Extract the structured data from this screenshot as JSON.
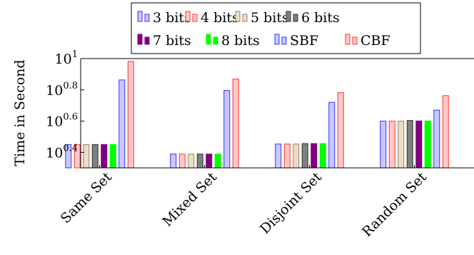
{
  "chart_data": {
    "type": "bar",
    "scale": "log",
    "ylabel": "Time in Second",
    "ylim": [
      2.0,
      10.0
    ],
    "yticks": [
      {
        "value": 2.512,
        "base": "10",
        "exp": "0.4"
      },
      {
        "value": 3.981,
        "base": "10",
        "exp": "0.6"
      },
      {
        "value": 6.31,
        "base": "10",
        "exp": "0.8"
      },
      {
        "value": 10.0,
        "base": "10",
        "exp": "1"
      }
    ],
    "categories": [
      "Same Set",
      "Mixed Set",
      "Disjoint Set",
      "Random Set"
    ],
    "series": [
      {
        "name": "3 bits",
        "fill": "#c8c8ff",
        "stroke": "#3333ff",
        "values": [
          2.82,
          2.45,
          2.84,
          3.98
        ]
      },
      {
        "name": "4 bits",
        "fill": "#ffc8c8",
        "stroke": "#ff3333",
        "values": [
          2.82,
          2.45,
          2.84,
          3.98
        ]
      },
      {
        "name": "5 bits",
        "fill": "#eadcc9",
        "stroke": "#a08060",
        "values": [
          2.82,
          2.45,
          2.84,
          3.98
        ]
      },
      {
        "name": "6 bits",
        "fill": "#808080",
        "stroke": "#333333",
        "values": [
          2.82,
          2.45,
          2.86,
          4.02
        ]
      },
      {
        "name": "7 bits",
        "fill": "#800080",
        "stroke": "#800080",
        "values": [
          2.82,
          2.45,
          2.86,
          3.99
        ]
      },
      {
        "name": "8 bits",
        "fill": "#00ff00",
        "stroke": "#00ff00",
        "values": [
          2.82,
          2.45,
          2.86,
          3.99
        ]
      },
      {
        "name": "SBF",
        "fill": "#c8c8ff",
        "stroke": "#3333ff",
        "values": [
          7.3,
          6.25,
          5.25,
          4.68
        ]
      },
      {
        "name": "CBF",
        "fill": "#ffc8c8",
        "stroke": "#ff3333",
        "values": [
          9.6,
          7.4,
          6.05,
          5.8
        ]
      }
    ],
    "legend_position": "top"
  }
}
